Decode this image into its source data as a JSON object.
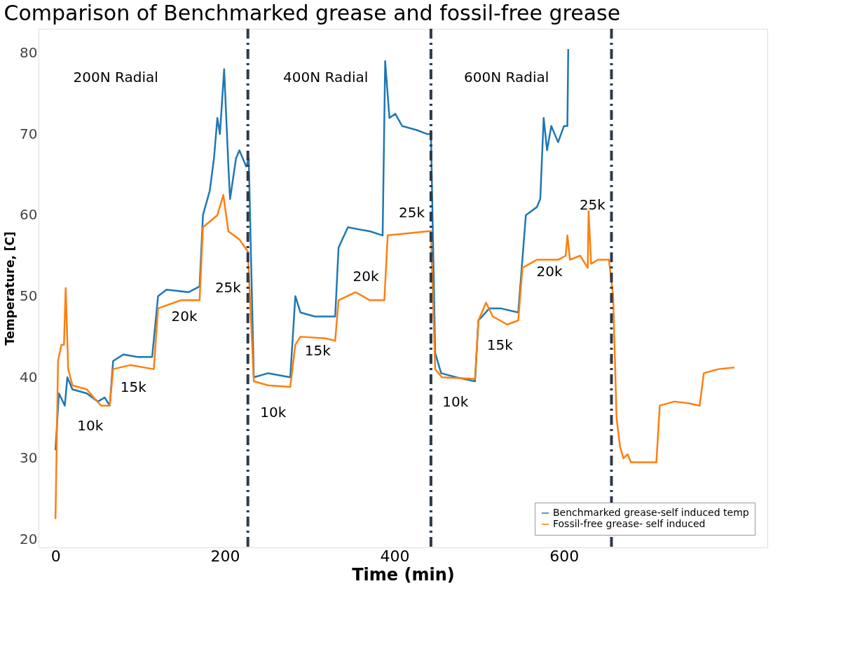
{
  "chart_data": {
    "type": "line",
    "title": "Comparison of Benchmarked grease and fossil-free grease",
    "xlabel": "Time (min)",
    "ylabel": "Temperature, [C]",
    "xlim": [
      -20,
      840
    ],
    "ylim": [
      19,
      83
    ],
    "xticks": [
      0,
      200,
      400,
      600
    ],
    "yticks": [
      20,
      30,
      40,
      50,
      60,
      70,
      80
    ],
    "grid": true,
    "legend": "bottom right",
    "line_style": "solid",
    "marker": "none",
    "series": [
      {
        "name": "Benchmarked grease-self induced temp",
        "color": "#1f77b4",
        "x": [
          0,
          4,
          11,
          14,
          20,
          37,
          50,
          58,
          64,
          68,
          80,
          97,
          114,
          121,
          131,
          157,
          170,
          174,
          182,
          187,
          191,
          194,
          199,
          204,
          206,
          213,
          217,
          225,
          228,
          234,
          251,
          277,
          283,
          289,
          306,
          330,
          334,
          345,
          371,
          386,
          389,
          394,
          401,
          409,
          426,
          439,
          443,
          448,
          455,
          473,
          495,
          499,
          512,
          525,
          546,
          555,
          568,
          572,
          576,
          580,
          585,
          593,
          600,
          604,
          605
        ],
        "values": [
          31,
          38,
          36.5,
          40,
          38.5,
          38,
          37,
          37.5,
          36.5,
          42,
          42.8,
          42.5,
          42.5,
          50,
          50.8,
          50.5,
          51.2,
          60,
          63,
          67,
          72,
          70,
          78,
          66,
          62,
          67,
          68,
          66,
          67,
          40,
          40.5,
          40,
          50,
          48,
          47.5,
          47.5,
          56,
          58.5,
          58,
          57.5,
          79,
          72,
          72.5,
          71,
          70.5,
          70,
          70,
          43,
          40.5,
          40,
          39.5,
          47,
          48.5,
          48.5,
          48,
          60,
          61,
          62,
          72,
          68,
          71,
          69,
          71,
          71,
          80.5
        ]
      },
      {
        "name": "Fossil-free grease- self induced",
        "color": "#ff7f0e",
        "x": [
          0,
          3,
          7,
          10,
          12,
          15,
          20,
          37,
          45,
          54,
          64,
          68,
          88,
          116,
          121,
          148,
          170,
          174,
          191,
          198,
          204,
          217,
          227,
          234,
          251,
          277,
          283,
          289,
          319,
          330,
          334,
          354,
          371,
          388,
          392,
          439,
          443,
          448,
          456,
          495,
          499,
          508,
          516,
          533,
          546,
          551,
          568,
          593,
          602,
          604,
          607,
          619,
          628,
          629,
          632,
          640,
          653,
          658,
          662,
          666,
          670,
          675,
          679,
          709,
          713,
          730,
          747,
          760,
          765,
          782,
          801
        ],
        "values": [
          22.5,
          42,
          44,
          44,
          51,
          41,
          39,
          38.5,
          37.5,
          36.5,
          36.5,
          41,
          41.5,
          41,
          48.5,
          49.5,
          49.5,
          58.5,
          60,
          62.5,
          58,
          57,
          55.5,
          39.5,
          39,
          38.8,
          44,
          45,
          44.8,
          44.5,
          49.5,
          50.5,
          49.5,
          49.5,
          57.5,
          58,
          58,
          41,
          40,
          39.8,
          47,
          49.2,
          47.5,
          46.5,
          47,
          53.5,
          54.5,
          54.5,
          55,
          57.5,
          54.5,
          55,
          53.5,
          60.5,
          54,
          54.5,
          54.5,
          50,
          35,
          31.5,
          30,
          30.5,
          29.5,
          29.5,
          36.5,
          37,
          36.8,
          36.5,
          40.5,
          41,
          41.2
        ]
      }
    ],
    "ref_lines": [
      {
        "axis": "x",
        "value": 227,
        "label": null,
        "color": "#2d3a4a",
        "line_style": "dashed"
      },
      {
        "axis": "x",
        "value": 443,
        "label": null,
        "color": "#2d3a4a",
        "line_style": "dashed"
      },
      {
        "axis": "x",
        "value": 656,
        "label": null,
        "color": "#2d3a4a",
        "line_style": "dashed"
      }
    ],
    "annotations": [
      "200N Radial",
      "400N Radial",
      "600N Radial",
      "10k",
      "15k",
      "20k",
      "25k",
      "10k",
      "15k",
      "20k",
      "25k",
      "10k",
      "15k",
      "20k",
      "25k"
    ]
  }
}
